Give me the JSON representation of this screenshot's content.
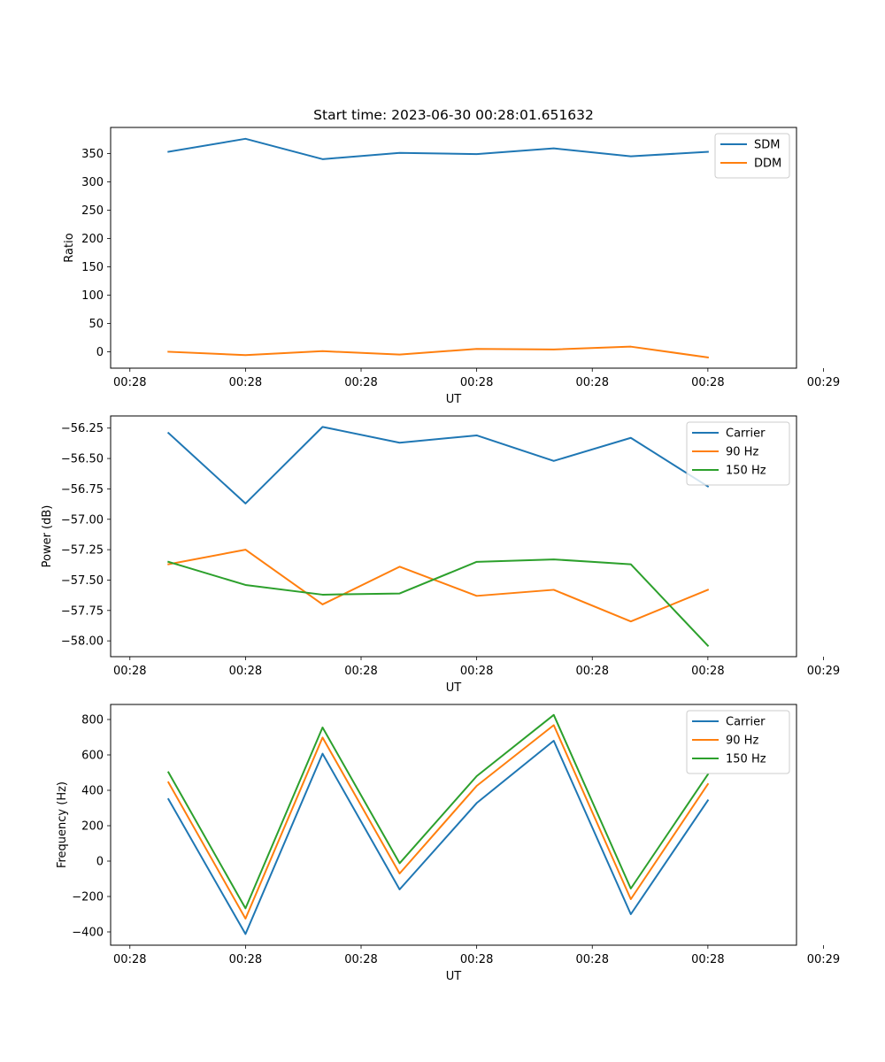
{
  "title": "Start time: 2023-06-30 00:28:01.651632",
  "chart_data": [
    {
      "type": "line",
      "name": "ratio",
      "xlabel": "UT",
      "ylabel": "Ratio",
      "x": [
        1,
        2,
        3,
        4,
        5,
        6,
        7,
        8
      ],
      "xlim": [
        0.25,
        9.15
      ],
      "xticks": [
        0.5,
        2,
        3.5,
        5,
        6.5,
        8,
        9.5
      ],
      "xticklabels": [
        "00:28",
        "00:28",
        "00:28",
        "00:28",
        "00:28",
        "00:28",
        "00:29"
      ],
      "ylim": [
        -29,
        396
      ],
      "yticks": [
        0,
        50,
        100,
        150,
        200,
        250,
        300,
        350
      ],
      "yticklabels": [
        "0",
        "50",
        "100",
        "150",
        "200",
        "250",
        "300",
        "350"
      ],
      "legend_position": "upper-right",
      "series": [
        {
          "name": "SDM",
          "color": "#1f77b4",
          "values": [
            353,
            376,
            340,
            351,
            349,
            359,
            345,
            353
          ]
        },
        {
          "name": "DDM",
          "color": "#ff7f0e",
          "values": [
            0,
            -6,
            1,
            -5,
            5,
            4,
            9,
            -10
          ]
        }
      ]
    },
    {
      "type": "line",
      "name": "power",
      "xlabel": "UT",
      "ylabel": "Power (dB)",
      "x": [
        1,
        2,
        3,
        4,
        5,
        6,
        7,
        8
      ],
      "xlim": [
        0.25,
        9.15
      ],
      "xticks": [
        0.5,
        2,
        3.5,
        5,
        6.5,
        8,
        9.5
      ],
      "xticklabels": [
        "00:28",
        "00:28",
        "00:28",
        "00:28",
        "00:28",
        "00:28",
        "00:29"
      ],
      "ylim": [
        -58.13,
        -56.15
      ],
      "yticks": [
        -58.0,
        -57.75,
        -57.5,
        -57.25,
        -57.0,
        -56.75,
        -56.5,
        -56.25
      ],
      "yticklabels": [
        "−58.00",
        "−57.75",
        "−57.50",
        "−57.25",
        "−57.00",
        "−56.75",
        "−56.50",
        "−56.25"
      ],
      "legend_position": "upper-right",
      "series": [
        {
          "name": "Carrier",
          "color": "#1f77b4",
          "values": [
            -56.29,
            -56.87,
            -56.24,
            -56.37,
            -56.31,
            -56.52,
            -56.33,
            -56.73
          ]
        },
        {
          "name": "90 Hz",
          "color": "#ff7f0e",
          "values": [
            -57.37,
            -57.25,
            -57.7,
            -57.39,
            -57.63,
            -57.58,
            -57.84,
            -57.58
          ]
        },
        {
          "name": "150 Hz",
          "color": "#2ca02c",
          "values": [
            -57.35,
            -57.54,
            -57.62,
            -57.61,
            -57.35,
            -57.33,
            -57.37,
            -58.04
          ]
        }
      ]
    },
    {
      "type": "line",
      "name": "frequency",
      "xlabel": "UT",
      "ylabel": "Frequency (Hz)",
      "x": [
        1,
        2,
        3,
        4,
        5,
        6,
        7,
        8
      ],
      "xlim": [
        0.25,
        9.15
      ],
      "xticks": [
        0.5,
        2,
        3.5,
        5,
        6.5,
        8,
        9.5
      ],
      "xticklabels": [
        "00:28",
        "00:28",
        "00:28",
        "00:28",
        "00:28",
        "00:28",
        "00:29"
      ],
      "ylim": [
        -475,
        885
      ],
      "yticks": [
        -400,
        -200,
        0,
        200,
        400,
        600,
        800
      ],
      "yticklabels": [
        "−400",
        "−200",
        "0",
        "200",
        "400",
        "600",
        "800"
      ],
      "legend_position": "upper-right",
      "series": [
        {
          "name": "Carrier",
          "color": "#1f77b4",
          "values": [
            350,
            -412,
            607,
            -160,
            328,
            680,
            -300,
            343
          ]
        },
        {
          "name": "90 Hz",
          "color": "#ff7f0e",
          "values": [
            445,
            -325,
            698,
            -70,
            425,
            768,
            -215,
            435
          ]
        },
        {
          "name": "150 Hz",
          "color": "#2ca02c",
          "values": [
            502,
            -267,
            755,
            -12,
            480,
            826,
            -155,
            490
          ]
        }
      ]
    }
  ]
}
